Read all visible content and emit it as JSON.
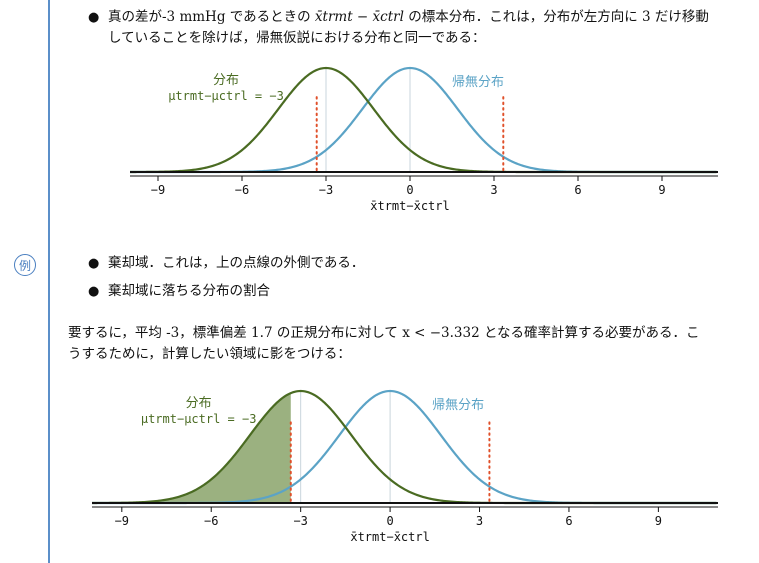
{
  "example_badge": "例",
  "bullet1": {
    "line1_a": "真の差が-3 mmHg であるときの ",
    "line1_math": "x̄trmt − x̄ctrl",
    "line1_b": " の標本分布．これは，分布が左方向に 3 だけ移動",
    "line2": "していることを除けば，帰無仮説における分布と同一である："
  },
  "bullet2": "棄却域．これは，上の点線の外側である．",
  "bullet3": "棄却域に落ちる分布の割合",
  "paragraph": {
    "line1": "要するに，平均 -3，標準偏差 1.7 の正規分布に対して x < −3.332 となる確率計算する必要がある．こ",
    "line2": "うするために，計算したい領域に影をつける："
  },
  "charts": {
    "alt_label_top": "分布",
    "alt_label_bottom": "μtrmt−μctrl = −3",
    "null_label": "帰無分布",
    "x_axis_label": "x̄trmt−x̄ctrl"
  },
  "chart_data": [
    {
      "type": "line",
      "x_ticks": [
        -9,
        -6,
        -3,
        0,
        3,
        6,
        9
      ],
      "xlim": [
        -10,
        11
      ],
      "series": [
        {
          "name": "帰無分布",
          "mean": 0,
          "sd": 1.7,
          "color": "#5ba3c6"
        },
        {
          "name": "分布 μtrmt−μctrl = −3",
          "mean": -3,
          "sd": 1.7,
          "color": "#4a6b22"
        }
      ],
      "critical_values": [
        -3.332,
        3.332
      ],
      "xlabel": "x̄trmt−x̄ctrl"
    },
    {
      "type": "area",
      "x_ticks": [
        -9,
        -6,
        -3,
        0,
        3,
        6,
        9
      ],
      "xlim": [
        -10,
        11
      ],
      "series": [
        {
          "name": "帰無分布",
          "mean": 0,
          "sd": 1.7,
          "color": "#5ba3c6"
        },
        {
          "name": "分布 μtrmt−μctrl = −3",
          "mean": -3,
          "sd": 1.7,
          "color": "#4a6b22"
        }
      ],
      "critical_values": [
        -3.332,
        3.332
      ],
      "shaded_region": {
        "series": "分布 μtrmt−μctrl = −3",
        "from": -10,
        "to": -3.332,
        "color": "#8aa36a"
      },
      "xlabel": "x̄trmt−x̄ctrl"
    }
  ],
  "colors": {
    "accent": "#4a7fc0",
    "alt": "#4a6b22",
    "null": "#5ba3c6",
    "critical": "#e0502a"
  }
}
